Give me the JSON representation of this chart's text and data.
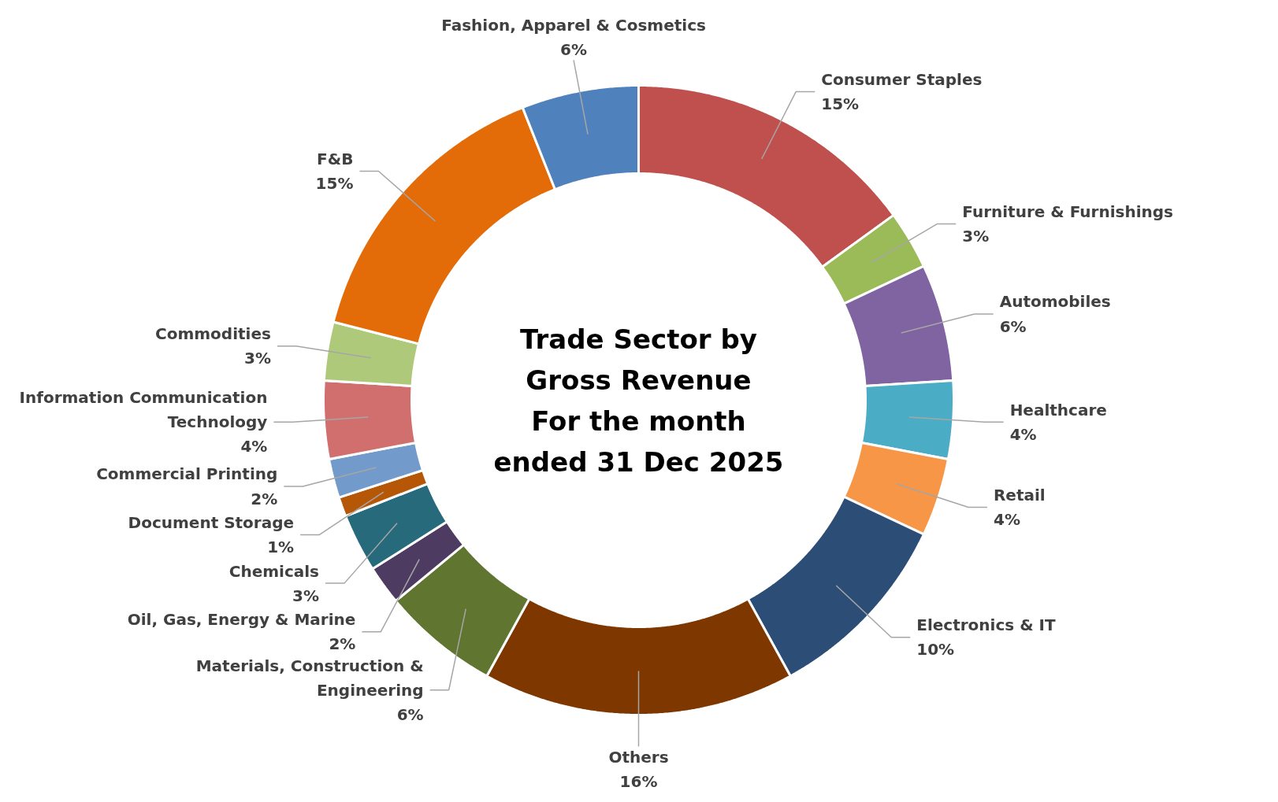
{
  "chart_data": {
    "type": "donut",
    "title": "Trade Sector by\nGross Revenue\nFor the month\nended 31 Dec 2025",
    "categories": [
      "Consumer Staples",
      "Furniture & Furnishings",
      "Automobiles",
      "Healthcare",
      "Retail",
      "Electronics & IT",
      "Others",
      "Materials, Construction & Engineering",
      "Oil, Gas, Energy & Marine",
      "Chemicals",
      "Document Storage",
      "Commercial Printing",
      "Information Communication Technology",
      "Commodities",
      "F&B",
      "Fashion, Apparel & Cosmetics"
    ],
    "values": [
      15,
      3,
      6,
      4,
      4,
      10,
      16,
      6,
      2,
      3,
      1,
      2,
      4,
      3,
      15,
      6
    ],
    "value_labels": [
      "15%",
      "3%",
      "6%",
      "4%",
      "4%",
      "10%",
      "16%",
      "6%",
      "2%",
      "3%",
      "1%",
      "2%",
      "4%",
      "3%",
      "15%",
      "6%"
    ],
    "colors": [
      "#c0504d",
      "#9bbb59",
      "#8064a2",
      "#4bacc6",
      "#f79646",
      "#2c4d75",
      "#7f3700",
      "#5f7530",
      "#4d3b62",
      "#276a7c",
      "#b65708",
      "#729aca",
      "#d06f6d",
      "#afc97a",
      "#e36c09",
      "#4f81bd"
    ]
  }
}
